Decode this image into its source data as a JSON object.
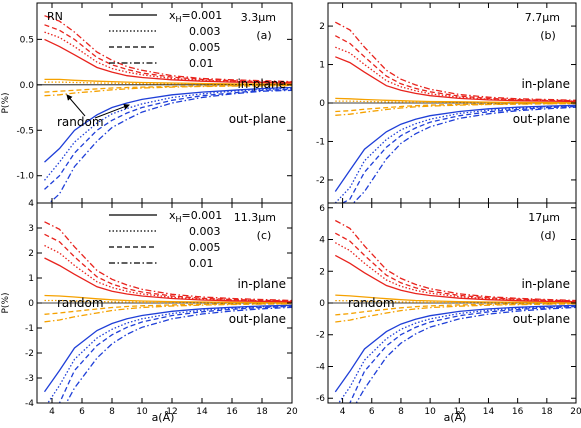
{
  "figure": {
    "xlabel": "a(Å)",
    "ylabel": "P(%)",
    "legend_var_sub": "H",
    "legend_var_prefix": "x",
    "legend_first_prefix": "=",
    "legend_values": [
      "0.001",
      "0.003",
      "0.005",
      "0.01"
    ],
    "legend_styles": [
      "solid",
      "dotted",
      "dashed",
      "dashdot"
    ],
    "annotations": {
      "in_plane": "in-plane",
      "out_plane": "out-plane",
      "random": "random",
      "rn": "RN"
    },
    "colors": {
      "in_plane": "#e8231d",
      "out_plane": "#1f3fd8",
      "random": "#f5a100",
      "axis": "#000000"
    }
  },
  "chart_data": [
    {
      "type": "line",
      "panel_label": "(a)",
      "wavelength": "3.3μm",
      "xlim": [
        3,
        20
      ],
      "ylim": [
        -1.3,
        0.9
      ],
      "yticks": [
        -1.0,
        -0.5,
        0.0,
        0.5
      ],
      "ytick_labels": [
        "-1.0",
        "-0.5",
        "0.0",
        "0.5"
      ],
      "xticks": [
        4,
        6,
        8,
        10,
        12,
        14,
        16,
        18,
        20
      ],
      "show_xticklabels": false,
      "show_ylabel": true,
      "show_legend": true,
      "show_rn": true,
      "show_random_label": true,
      "x": [
        3.5,
        4.5,
        5.5,
        7,
        8,
        9,
        10,
        12,
        14,
        16,
        18,
        20
      ],
      "series": [
        {
          "group": "in-plane",
          "xH": "0.001",
          "values": [
            0.5,
            0.42,
            0.33,
            0.19,
            0.14,
            0.1,
            0.08,
            0.055,
            0.04,
            0.03,
            0.025,
            0.02
          ]
        },
        {
          "group": "in-plane",
          "xH": "0.003",
          "values": [
            0.58,
            0.52,
            0.42,
            0.25,
            0.18,
            0.14,
            0.11,
            0.07,
            0.05,
            0.04,
            0.03,
            0.025
          ]
        },
        {
          "group": "in-plane",
          "xH": "0.005",
          "values": [
            0.66,
            0.6,
            0.5,
            0.3,
            0.22,
            0.17,
            0.13,
            0.085,
            0.06,
            0.045,
            0.035,
            0.03
          ]
        },
        {
          "group": "in-plane",
          "xH": "0.01",
          "values": [
            0.76,
            0.7,
            0.58,
            0.36,
            0.27,
            0.2,
            0.16,
            0.1,
            0.07,
            0.055,
            0.045,
            0.035
          ]
        },
        {
          "group": "out-plane",
          "xH": "0.001",
          "values": [
            -0.85,
            -0.7,
            -0.5,
            -0.33,
            -0.25,
            -0.2,
            -0.16,
            -0.11,
            -0.08,
            -0.06,
            -0.04,
            -0.03
          ]
        },
        {
          "group": "out-plane",
          "xH": "0.003",
          "values": [
            -1.05,
            -0.85,
            -0.63,
            -0.42,
            -0.32,
            -0.26,
            -0.21,
            -0.14,
            -0.1,
            -0.07,
            -0.05,
            -0.04
          ]
        },
        {
          "group": "out-plane",
          "xH": "0.005",
          "values": [
            -1.15,
            -1.0,
            -0.75,
            -0.5,
            -0.39,
            -0.31,
            -0.25,
            -0.17,
            -0.12,
            -0.09,
            -0.06,
            -0.05
          ]
        },
        {
          "group": "out-plane",
          "xH": "0.01",
          "values": [
            -1.35,
            -1.2,
            -0.9,
            -0.62,
            -0.47,
            -0.38,
            -0.3,
            -0.2,
            -0.14,
            -0.1,
            -0.07,
            -0.06
          ]
        },
        {
          "group": "random",
          "xH": "0.001",
          "values": [
            0.06,
            0.06,
            0.05,
            0.04,
            0.035,
            0.03,
            0.025,
            0.02,
            0.015,
            0.01,
            0.01,
            0.01
          ]
        },
        {
          "group": "random",
          "xH": "0.003",
          "values": [
            0.03,
            0.03,
            0.025,
            0.02,
            0.018,
            0.015,
            0.012,
            0.01,
            0.008,
            0.006,
            0.005,
            0.004
          ]
        },
        {
          "group": "random",
          "xH": "0.005",
          "values": [
            -0.08,
            -0.07,
            -0.06,
            -0.045,
            -0.035,
            -0.03,
            -0.025,
            -0.018,
            -0.013,
            -0.01,
            -0.008,
            -0.006
          ]
        },
        {
          "group": "random",
          "xH": "0.01",
          "values": [
            -0.12,
            -0.11,
            -0.09,
            -0.07,
            -0.055,
            -0.045,
            -0.035,
            -0.025,
            -0.018,
            -0.014,
            -0.011,
            -0.009
          ]
        }
      ]
    },
    {
      "type": "line",
      "panel_label": "(b)",
      "wavelength": "7.7μm",
      "xlim": [
        3,
        20
      ],
      "ylim": [
        -2.6,
        2.6
      ],
      "yticks": [
        -2,
        -1,
        0,
        1,
        2
      ],
      "ytick_labels": [
        "-2",
        "-1",
        "0",
        "1",
        "2"
      ],
      "xticks": [
        4,
        6,
        8,
        10,
        12,
        14,
        16,
        18,
        20
      ],
      "show_xticklabels": false,
      "show_ylabel": false,
      "show_legend": false,
      "show_rn": false,
      "show_random_label": false,
      "x": [
        3.5,
        4.5,
        5.5,
        7,
        8,
        9,
        10,
        12,
        14,
        16,
        18,
        20
      ],
      "series": [
        {
          "group": "in-plane",
          "xH": "0.001",
          "values": [
            1.2,
            1.05,
            0.8,
            0.45,
            0.33,
            0.25,
            0.19,
            0.12,
            0.08,
            0.06,
            0.05,
            0.04
          ]
        },
        {
          "group": "in-plane",
          "xH": "0.003",
          "values": [
            1.45,
            1.3,
            1.0,
            0.58,
            0.42,
            0.32,
            0.24,
            0.15,
            0.1,
            0.08,
            0.06,
            0.05
          ]
        },
        {
          "group": "in-plane",
          "xH": "0.005",
          "values": [
            1.75,
            1.55,
            1.2,
            0.7,
            0.5,
            0.38,
            0.29,
            0.18,
            0.12,
            0.09,
            0.07,
            0.06
          ]
        },
        {
          "group": "in-plane",
          "xH": "0.01",
          "values": [
            2.1,
            1.9,
            1.45,
            0.85,
            0.62,
            0.47,
            0.36,
            0.22,
            0.15,
            0.11,
            0.09,
            0.07
          ]
        },
        {
          "group": "out-plane",
          "xH": "0.001",
          "values": [
            -2.3,
            -1.75,
            -1.2,
            -0.75,
            -0.55,
            -0.42,
            -0.33,
            -0.22,
            -0.15,
            -0.11,
            -0.08,
            -0.06
          ]
        },
        {
          "group": "out-plane",
          "xH": "0.003",
          "values": [
            -2.6,
            -2.2,
            -1.5,
            -0.95,
            -0.7,
            -0.54,
            -0.42,
            -0.27,
            -0.19,
            -0.14,
            -0.1,
            -0.08
          ]
        },
        {
          "group": "out-plane",
          "xH": "0.005",
          "values": [
            -2.7,
            -2.5,
            -1.8,
            -1.15,
            -0.85,
            -0.65,
            -0.5,
            -0.33,
            -0.23,
            -0.17,
            -0.12,
            -0.09
          ]
        },
        {
          "group": "out-plane",
          "xH": "0.01",
          "values": [
            -2.8,
            -2.7,
            -2.3,
            -1.45,
            -1.05,
            -0.8,
            -0.62,
            -0.4,
            -0.28,
            -0.2,
            -0.15,
            -0.11
          ]
        },
        {
          "group": "random",
          "xH": "0.001",
          "values": [
            0.12,
            0.11,
            0.09,
            0.07,
            0.06,
            0.05,
            0.04,
            0.03,
            0.02,
            0.015,
            0.012,
            0.01
          ]
        },
        {
          "group": "random",
          "xH": "0.003",
          "values": [
            0.05,
            0.05,
            0.04,
            0.03,
            0.025,
            0.02,
            0.017,
            0.012,
            0.009,
            0.007,
            0.005,
            0.004
          ]
        },
        {
          "group": "random",
          "xH": "0.005",
          "values": [
            -0.22,
            -0.2,
            -0.16,
            -0.12,
            -0.09,
            -0.07,
            -0.055,
            -0.04,
            -0.03,
            -0.02,
            -0.015,
            -0.012
          ]
        },
        {
          "group": "random",
          "xH": "0.01",
          "values": [
            -0.32,
            -0.29,
            -0.24,
            -0.17,
            -0.13,
            -0.1,
            -0.08,
            -0.055,
            -0.04,
            -0.03,
            -0.022,
            -0.017
          ]
        }
      ]
    },
    {
      "type": "line",
      "panel_label": "(c)",
      "wavelength": "11.3μm",
      "xlim": [
        3,
        20
      ],
      "ylim": [
        -4,
        4
      ],
      "yticks": [
        -4,
        -3,
        -2,
        -1,
        0,
        1,
        2,
        3,
        4
      ],
      "ytick_labels": [
        "-4",
        "-3",
        "-2",
        "-1",
        "0",
        "1",
        "2",
        "3",
        "4"
      ],
      "xticks": [
        4,
        6,
        8,
        10,
        12,
        14,
        16,
        18,
        20
      ],
      "show_xticklabels": true,
      "show_ylabel": true,
      "show_legend": true,
      "show_rn": false,
      "show_random_label": true,
      "x": [
        3.5,
        4.5,
        5.5,
        7,
        8,
        9,
        10,
        12,
        14,
        16,
        18,
        20
      ],
      "series": [
        {
          "group": "in-plane",
          "xH": "0.001",
          "values": [
            1.8,
            1.5,
            1.15,
            0.65,
            0.47,
            0.36,
            0.28,
            0.18,
            0.12,
            0.09,
            0.07,
            0.05
          ]
        },
        {
          "group": "in-plane",
          "xH": "0.003",
          "values": [
            2.3,
            2.0,
            1.5,
            0.85,
            0.62,
            0.47,
            0.36,
            0.23,
            0.16,
            0.12,
            0.09,
            0.07
          ]
        },
        {
          "group": "in-plane",
          "xH": "0.005",
          "values": [
            2.75,
            2.45,
            1.85,
            1.05,
            0.76,
            0.57,
            0.44,
            0.28,
            0.19,
            0.14,
            0.11,
            0.08
          ]
        },
        {
          "group": "in-plane",
          "xH": "0.01",
          "values": [
            3.25,
            2.95,
            2.25,
            1.3,
            0.95,
            0.72,
            0.55,
            0.35,
            0.24,
            0.18,
            0.14,
            0.1
          ]
        },
        {
          "group": "out-plane",
          "xH": "0.001",
          "values": [
            -3.55,
            -2.7,
            -1.8,
            -1.1,
            -0.82,
            -0.63,
            -0.5,
            -0.33,
            -0.23,
            -0.17,
            -0.12,
            -0.09
          ]
        },
        {
          "group": "out-plane",
          "xH": "0.003",
          "values": [
            -4.2,
            -3.3,
            -2.25,
            -1.4,
            -1.05,
            -0.8,
            -0.63,
            -0.42,
            -0.29,
            -0.21,
            -0.15,
            -0.11
          ]
        },
        {
          "group": "out-plane",
          "xH": "0.005",
          "values": [
            -4.5,
            -4.0,
            -2.7,
            -1.7,
            -1.27,
            -0.97,
            -0.76,
            -0.5,
            -0.35,
            -0.25,
            -0.18,
            -0.13
          ]
        },
        {
          "group": "out-plane",
          "xH": "0.01",
          "values": [
            -4.8,
            -4.5,
            -3.4,
            -2.2,
            -1.63,
            -1.25,
            -0.97,
            -0.63,
            -0.44,
            -0.32,
            -0.23,
            -0.17
          ]
        },
        {
          "group": "random",
          "xH": "0.001",
          "values": [
            0.3,
            0.28,
            0.24,
            0.17,
            0.13,
            0.1,
            0.08,
            0.055,
            0.04,
            0.03,
            0.022,
            0.017
          ]
        },
        {
          "group": "random",
          "xH": "0.003",
          "values": [
            0.1,
            0.1,
            0.08,
            0.06,
            0.05,
            0.04,
            0.03,
            0.02,
            0.015,
            0.011,
            0.008,
            0.006
          ]
        },
        {
          "group": "random",
          "xH": "0.005",
          "values": [
            -0.45,
            -0.4,
            -0.33,
            -0.24,
            -0.18,
            -0.14,
            -0.11,
            -0.075,
            -0.055,
            -0.04,
            -0.03,
            -0.022
          ]
        },
        {
          "group": "random",
          "xH": "0.01",
          "values": [
            -0.75,
            -0.68,
            -0.55,
            -0.4,
            -0.3,
            -0.23,
            -0.18,
            -0.12,
            -0.085,
            -0.06,
            -0.045,
            -0.034
          ]
        }
      ]
    },
    {
      "type": "line",
      "panel_label": "(d)",
      "wavelength": "17μm",
      "xlim": [
        3,
        20
      ],
      "ylim": [
        -6.3,
        6.3
      ],
      "yticks": [
        -6,
        -4,
        -2,
        0,
        2,
        4,
        6
      ],
      "ytick_labels": [
        "-6",
        "-4",
        "-2",
        "0",
        "2",
        "4",
        "6"
      ],
      "xticks": [
        4,
        6,
        8,
        10,
        12,
        14,
        16,
        18,
        20
      ],
      "show_xticklabels": true,
      "show_ylabel": false,
      "show_legend": false,
      "show_rn": false,
      "show_random_label": true,
      "x": [
        3.5,
        4.5,
        5.5,
        7,
        8,
        9,
        10,
        12,
        14,
        16,
        18,
        20
      ],
      "series": [
        {
          "group": "in-plane",
          "xH": "0.001",
          "values": [
            3.0,
            2.5,
            1.9,
            1.1,
            0.8,
            0.6,
            0.47,
            0.3,
            0.21,
            0.15,
            0.11,
            0.08
          ]
        },
        {
          "group": "in-plane",
          "xH": "0.003",
          "values": [
            3.8,
            3.3,
            2.5,
            1.45,
            1.05,
            0.8,
            0.62,
            0.4,
            0.27,
            0.2,
            0.15,
            0.11
          ]
        },
        {
          "group": "in-plane",
          "xH": "0.005",
          "values": [
            4.4,
            3.9,
            3.0,
            1.75,
            1.27,
            0.96,
            0.75,
            0.48,
            0.33,
            0.24,
            0.18,
            0.13
          ]
        },
        {
          "group": "in-plane",
          "xH": "0.01",
          "values": [
            5.2,
            4.7,
            3.6,
            2.1,
            1.55,
            1.17,
            0.9,
            0.58,
            0.4,
            0.29,
            0.22,
            0.16
          ]
        },
        {
          "group": "out-plane",
          "xH": "0.001",
          "values": [
            -5.6,
            -4.3,
            -2.9,
            -1.8,
            -1.33,
            -1.02,
            -0.8,
            -0.53,
            -0.37,
            -0.27,
            -0.2,
            -0.15
          ]
        },
        {
          "group": "out-plane",
          "xH": "0.003",
          "values": [
            -6.6,
            -5.3,
            -3.6,
            -2.25,
            -1.66,
            -1.27,
            -1.0,
            -0.66,
            -0.46,
            -0.34,
            -0.25,
            -0.19
          ]
        },
        {
          "group": "out-plane",
          "xH": "0.005",
          "values": [
            -7.0,
            -6.3,
            -4.3,
            -2.7,
            -2.0,
            -1.54,
            -1.2,
            -0.8,
            -0.56,
            -0.41,
            -0.3,
            -0.22
          ]
        },
        {
          "group": "out-plane",
          "xH": "0.01",
          "values": [
            -7.5,
            -7.0,
            -5.4,
            -3.4,
            -2.53,
            -1.95,
            -1.52,
            -1.0,
            -0.7,
            -0.51,
            -0.38,
            -0.28
          ]
        },
        {
          "group": "random",
          "xH": "0.001",
          "values": [
            0.5,
            0.45,
            0.38,
            0.27,
            0.21,
            0.16,
            0.13,
            0.09,
            0.065,
            0.048,
            0.036,
            0.027
          ]
        },
        {
          "group": "random",
          "xH": "0.003",
          "values": [
            0.15,
            0.14,
            0.12,
            0.09,
            0.07,
            0.055,
            0.044,
            0.03,
            0.022,
            0.016,
            0.012,
            0.009
          ]
        },
        {
          "group": "random",
          "xH": "0.005",
          "values": [
            -0.75,
            -0.67,
            -0.55,
            -0.4,
            -0.3,
            -0.23,
            -0.18,
            -0.12,
            -0.088,
            -0.064,
            -0.048,
            -0.036
          ]
        },
        {
          "group": "random",
          "xH": "0.01",
          "values": [
            -1.2,
            -1.08,
            -0.88,
            -0.63,
            -0.48,
            -0.37,
            -0.29,
            -0.2,
            -0.14,
            -0.1,
            -0.077,
            -0.058
          ]
        }
      ]
    }
  ]
}
